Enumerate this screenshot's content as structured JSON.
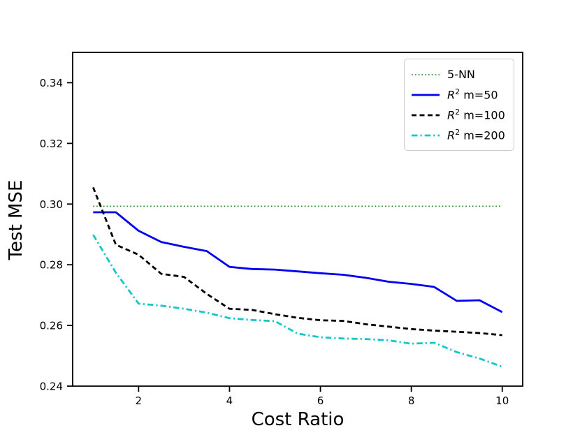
{
  "chart_data": {
    "type": "line",
    "title": "",
    "xlabel": "Cost Ratio",
    "ylabel": "Test MSE",
    "xlim": [
      0.55,
      10.45
    ],
    "ylim": [
      0.24,
      0.35
    ],
    "x_ticks": [
      2,
      4,
      6,
      8,
      10
    ],
    "y_ticks": [
      0.24,
      0.26,
      0.28,
      0.3,
      0.32,
      0.34
    ],
    "grid": false,
    "legend_position": "upper right",
    "x": [
      1,
      1.5,
      2,
      2.5,
      3,
      3.5,
      4,
      4.5,
      5,
      5.5,
      6,
      6.5,
      7,
      7.5,
      8,
      8.5,
      9,
      9.5,
      10
    ],
    "series": [
      {
        "name": "5-NN",
        "color": "#228b22",
        "style": "dotted",
        "width": 1.6,
        "values": [
          0.2993,
          0.2993,
          0.2993,
          0.2993,
          0.2993,
          0.2993,
          0.2993,
          0.2993,
          0.2993,
          0.2993,
          0.2993,
          0.2993,
          0.2993,
          0.2993,
          0.2993,
          0.2993,
          0.2993,
          0.2993,
          0.2993
        ]
      },
      {
        "name": "R² m=50",
        "color": "#0000ee",
        "style": "solid",
        "width": 2.8,
        "values": [
          0.2973,
          0.2973,
          0.2912,
          0.2875,
          0.2859,
          0.2845,
          0.2793,
          0.2786,
          0.2784,
          0.2778,
          0.2772,
          0.2767,
          0.2757,
          0.2744,
          0.2737,
          0.2727,
          0.2681,
          0.2683,
          0.2644
        ]
      },
      {
        "name": "R² m=100",
        "color": "#000000",
        "style": "dashed",
        "width": 2.8,
        "values": [
          0.3055,
          0.2866,
          0.2833,
          0.277,
          0.276,
          0.2704,
          0.2655,
          0.2651,
          0.2637,
          0.2625,
          0.2617,
          0.2615,
          0.2604,
          0.2596,
          0.2588,
          0.2583,
          0.2579,
          0.2575,
          0.2568
        ]
      },
      {
        "name": "R² m=200",
        "color": "#12c7c7",
        "style": "dashdot",
        "width": 2.8,
        "values": [
          0.2899,
          0.2774,
          0.2672,
          0.2665,
          0.2655,
          0.2642,
          0.2624,
          0.2618,
          0.2614,
          0.2573,
          0.2561,
          0.2557,
          0.2555,
          0.2551,
          0.254,
          0.2543,
          0.2512,
          0.2491,
          0.2464
        ]
      }
    ]
  }
}
